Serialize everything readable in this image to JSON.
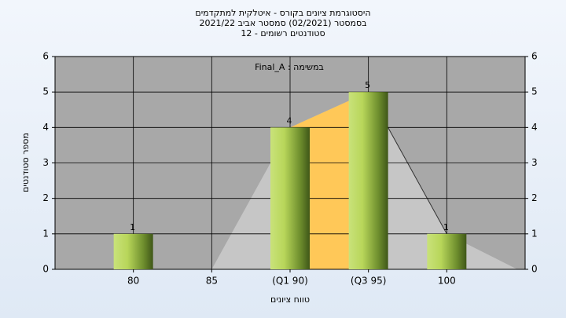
{
  "chart_data": {
    "type": "bar",
    "title": [
      "היסטוגרמת ציונים בקורס - איטלקית למתקדמים",
      "בסמסטר  (02/2021)  סמסטר אביב 2021/22",
      "סטודנטים רשומים - 12"
    ],
    "annotation": "Final_A : במשימה",
    "x_label": "טווח ציונים",
    "y_label": "מספר סטודנטים",
    "categories": [
      "80",
      "85",
      "(Q1 90)",
      "(Q3 95)",
      "100"
    ],
    "values": [
      1,
      0,
      4,
      5,
      1
    ],
    "ylim": [
      0,
      6
    ],
    "yticks": [
      0,
      1,
      2,
      3,
      4,
      5,
      6
    ],
    "y2lim": [
      0,
      6
    ],
    "y2ticks": [
      0,
      1,
      2,
      3,
      4,
      5,
      6
    ],
    "grid": true
  }
}
